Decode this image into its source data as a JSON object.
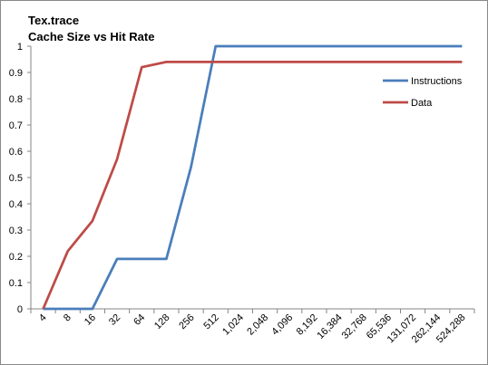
{
  "chart_data": {
    "type": "line",
    "title": "Tex.trace",
    "subtitle": "Cache Size vs Hit Rate",
    "xlabel": "",
    "ylabel": "",
    "categories": [
      "4",
      "8",
      "16",
      "32",
      "64",
      "128",
      "256",
      "512",
      "1,024",
      "2,048",
      "4,096",
      "8,192",
      "16,384",
      "32,768",
      "65,536",
      "131,072",
      "262,144",
      "524,288"
    ],
    "ylim": [
      0,
      1
    ],
    "yticks": [
      "0",
      "0.1",
      "0.2",
      "0.3",
      "0.4",
      "0.5",
      "0.6",
      "0.7",
      "0.8",
      "0.9",
      "1"
    ],
    "grid": false,
    "legend_position": "right",
    "series": [
      {
        "name": "Instructions",
        "color": "#4a7ebb",
        "values": [
          0,
          0,
          0,
          0.19,
          0.19,
          0.19,
          0.54,
          1,
          1,
          1,
          1,
          1,
          1,
          1,
          1,
          1,
          1,
          1
        ]
      },
      {
        "name": "Data",
        "color": "#be4b48",
        "values": [
          0,
          0.22,
          0.335,
          0.57,
          0.92,
          0.94,
          0.94,
          0.94,
          0.94,
          0.94,
          0.94,
          0.94,
          0.94,
          0.94,
          0.94,
          0.94,
          0.94,
          0.94
        ]
      }
    ]
  }
}
